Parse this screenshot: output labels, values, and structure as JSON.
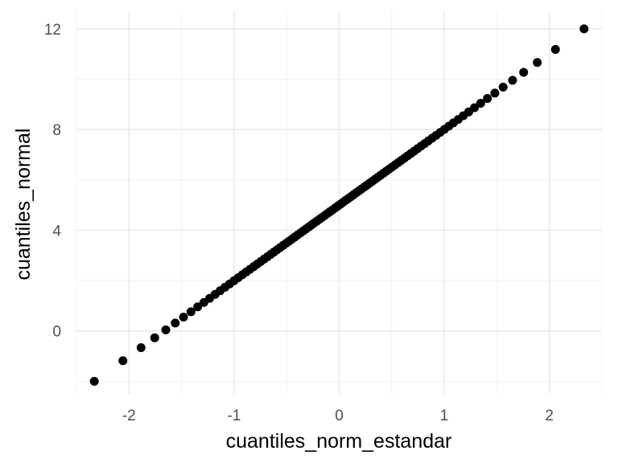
{
  "chart_data": {
    "type": "scatter",
    "xlabel": "cuantiles_norm_estandar",
    "ylabel": "cuantiles_normal",
    "xlim": [
      -2.5,
      2.5
    ],
    "ylim": [
      -2.5,
      12.7
    ],
    "x_ticks": [
      -2,
      -1,
      0,
      1,
      2
    ],
    "x_tick_labels": [
      "-2",
      "-1",
      "0",
      "1",
      "2"
    ],
    "y_ticks": [
      0,
      4,
      8,
      12
    ],
    "y_tick_labels": [
      "0",
      "4",
      "8",
      "12"
    ],
    "grid": true,
    "legend": "none",
    "series": [
      {
        "color": "#000000",
        "n_points": 100,
        "relationship": "y = 5 + 3 * x",
        "x_range": [
          -2.33,
          2.33
        ],
        "y_range": [
          -2.0,
          12.0
        ]
      }
    ]
  }
}
